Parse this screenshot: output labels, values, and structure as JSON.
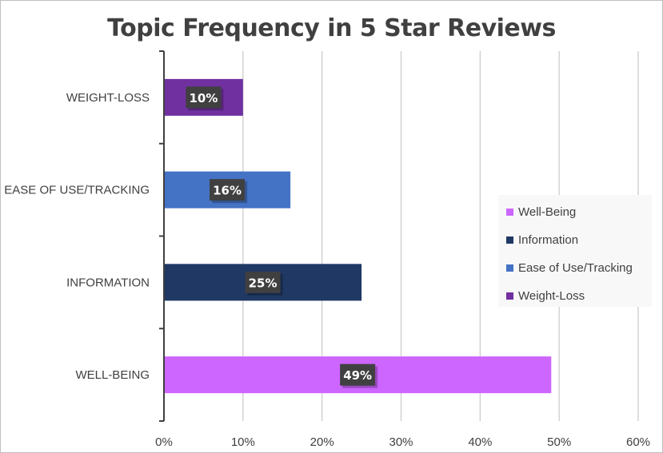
{
  "chart_data": {
    "type": "bar",
    "orientation": "horizontal",
    "title": "Topic Frequency in 5 Star Reviews",
    "categories": [
      "WEIGHT-LOSS",
      "EASE OF USE/TRACKING",
      "INFORMATION",
      "WELL-BEING"
    ],
    "values": [
      10,
      16,
      25,
      49
    ],
    "data_labels": [
      "10%",
      "16%",
      "25%",
      "49%"
    ],
    "colors": [
      "#7030a0",
      "#4472c4",
      "#1f3864",
      "#cc66ff"
    ],
    "xlim": [
      0,
      60
    ],
    "x_ticks": [
      0,
      10,
      20,
      30,
      40,
      50,
      60
    ],
    "x_tick_labels": [
      "0%",
      "10%",
      "20%",
      "30%",
      "40%",
      "50%",
      "60%"
    ],
    "grid": true,
    "legend": {
      "position": "right",
      "entries": [
        {
          "name": "Well-Being",
          "color": "#cc66ff"
        },
        {
          "name": "Information",
          "color": "#1f3864"
        },
        {
          "name": "Ease of Use/Tracking",
          "color": "#4472c4"
        },
        {
          "name": "Weight-Loss",
          "color": "#7030a0"
        }
      ]
    }
  }
}
